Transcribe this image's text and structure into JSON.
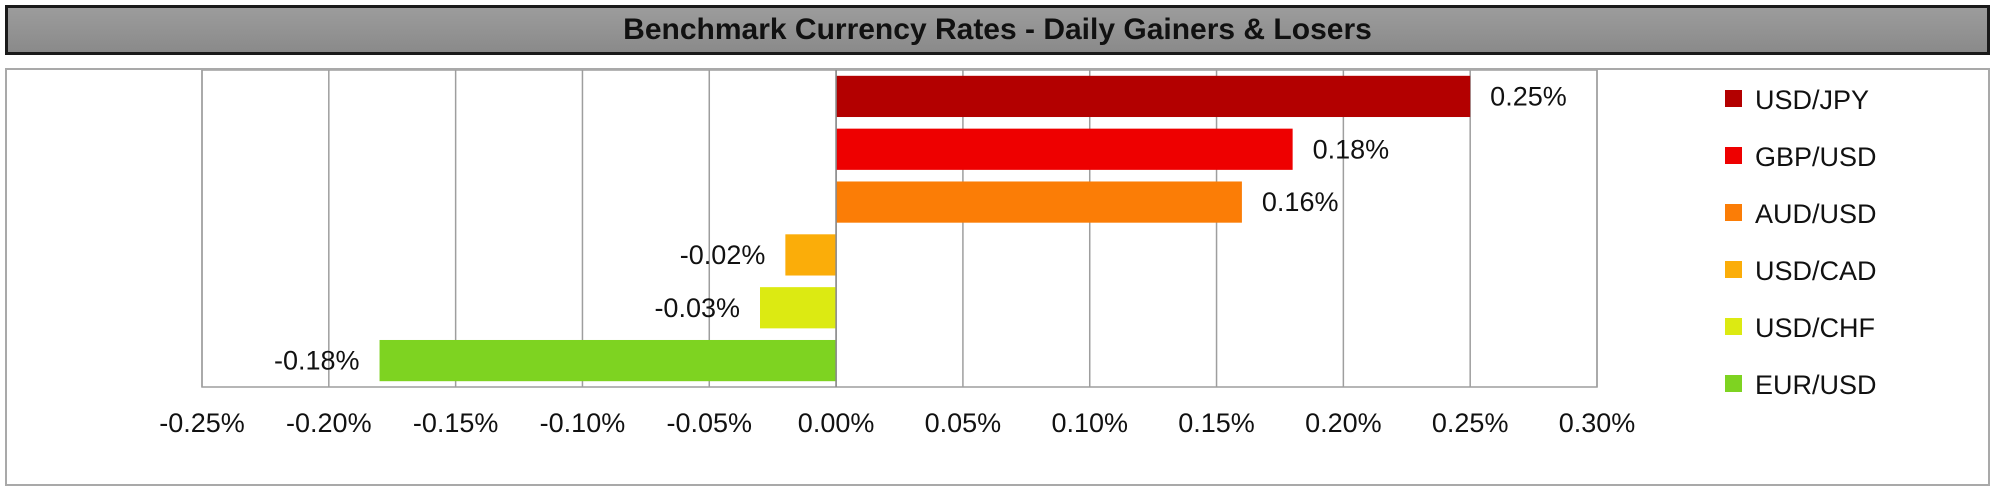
{
  "chart_data": {
    "type": "bar",
    "orientation": "horizontal",
    "title": "Benchmark Currency Rates - Daily Gainers & Losers",
    "categories": [
      "USD/JPY",
      "GBP/USD",
      "AUD/USD",
      "USD/CAD",
      "USD/CHF",
      "EUR/USD"
    ],
    "values": [
      0.25,
      0.18,
      0.16,
      -0.02,
      -0.03,
      -0.18
    ],
    "data_labels": [
      "0.25%",
      "0.18%",
      "0.16%",
      "-0.02%",
      "-0.03%",
      "-0.18%"
    ],
    "colors": [
      "#b30000",
      "#ee0000",
      "#fb7d06",
      "#fbad09",
      "#dcea12",
      "#7ed321"
    ],
    "xlim": [
      -0.25,
      0.3
    ],
    "x_ticks": [
      -0.25,
      -0.2,
      -0.15,
      -0.1,
      -0.05,
      0,
      0.05,
      0.1,
      0.15,
      0.2,
      0.25,
      0.3
    ],
    "x_tick_labels": [
      "-0.25%",
      "-0.20%",
      "-0.15%",
      "-0.10%",
      "-0.05%",
      "0.00%",
      "0.05%",
      "0.10%",
      "0.15%",
      "0.20%",
      "0.25%",
      "0.30%"
    ],
    "xlabel": "",
    "ylabel": "",
    "grid": true,
    "legend_position": "right"
  }
}
